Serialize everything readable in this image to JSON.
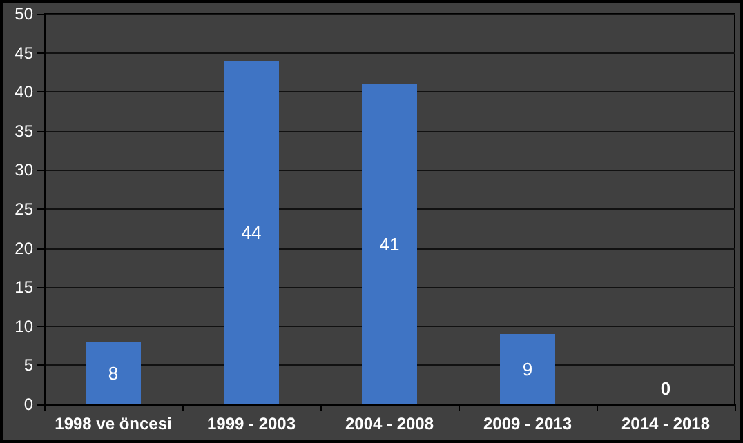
{
  "chart_data": {
    "type": "bar",
    "categories": [
      "1998 ve öncesi",
      "1999 - 2003",
      "2004 - 2008",
      "2009 - 2013",
      "2014 - 2018"
    ],
    "values": [
      8,
      44,
      41,
      9,
      0
    ],
    "color": "#3f74c4",
    "ylim": [
      0,
      50
    ],
    "yticks": [
      0,
      5,
      10,
      15,
      20,
      25,
      30,
      35,
      40,
      45,
      50
    ],
    "grid": "y",
    "data_labels": true
  }
}
